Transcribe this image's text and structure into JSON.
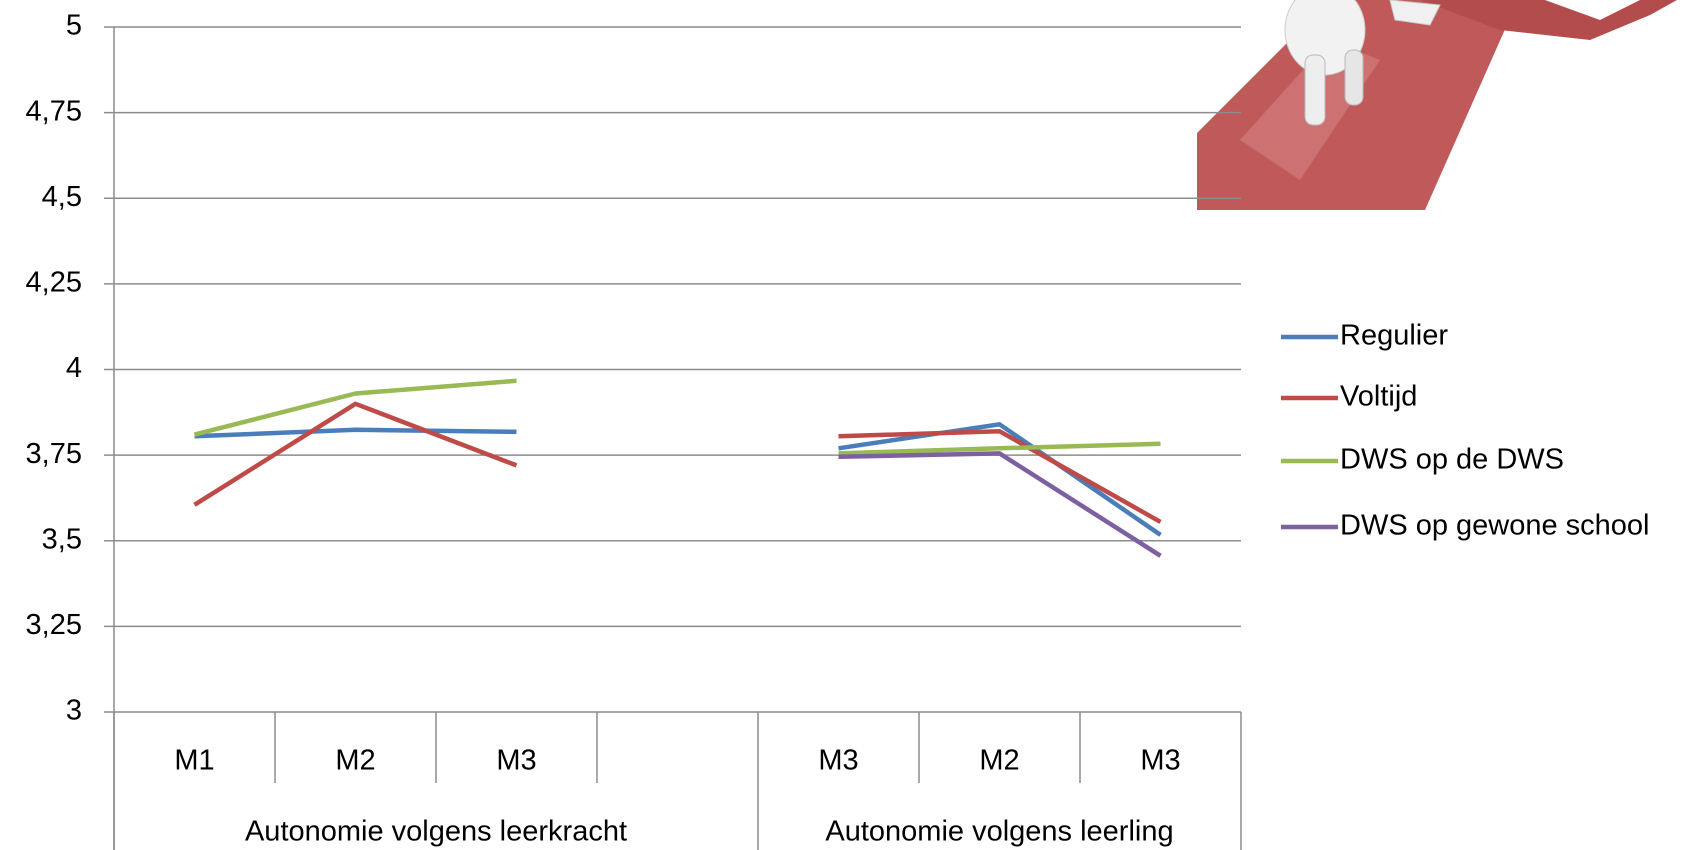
{
  "chart_data": {
    "type": "line",
    "categories": [
      "M1",
      "M2",
      "M3",
      null,
      "M3",
      "M2",
      "M3"
    ],
    "group_labels": [
      "Autonomie volgens leerkracht",
      "Autonomie volgens leerling"
    ],
    "series": [
      {
        "name": "Regulier",
        "color": "#4a7ebb",
        "values": [
          3.805,
          3.824,
          3.818,
          null,
          3.77,
          3.84,
          3.517
        ]
      },
      {
        "name": "Voltijd",
        "color": "#be4b48",
        "values": [
          3.605,
          3.9,
          3.72,
          null,
          3.805,
          3.82,
          3.555
        ]
      },
      {
        "name": "DWS op de DWS",
        "color": "#98b954",
        "values": [
          3.81,
          3.93,
          3.967,
          null,
          3.755,
          3.77,
          3.783
        ]
      },
      {
        "name": "DWS op gewone school",
        "color": "#7d60a0",
        "values": [
          null,
          null,
          null,
          null,
          3.745,
          3.755,
          3.456
        ]
      }
    ],
    "ylim": [
      3,
      5
    ],
    "yticks": [
      3,
      {
        "value": 3.25,
        "label": "3,25"
      },
      {
        "value": 3.5,
        "label": "3,5"
      },
      {
        "value": 3.75,
        "label": "3,75"
      },
      4,
      {
        "value": 4.25,
        "label": "4,25"
      },
      {
        "value": 4.5,
        "label": "4,5"
      },
      {
        "value": 4.75,
        "label": "4,75"
      },
      5
    ],
    "grid": true,
    "legend": "right"
  }
}
